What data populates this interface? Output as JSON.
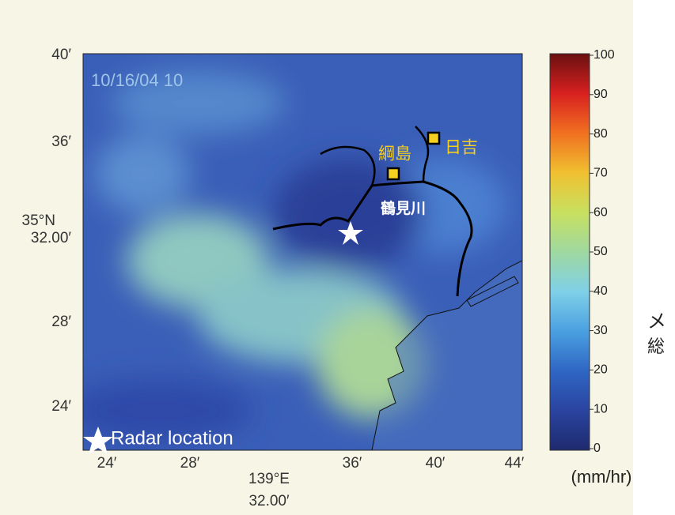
{
  "map": {
    "timestamp": "10/16/04 10",
    "places": {
      "tsunashima": "綱島",
      "hiyoshi": "日吉",
      "river": "鶴見川"
    },
    "radar_label": "Radar location",
    "y_labels": [
      "40′",
      "36′",
      [
        "35°N",
        "32.00′"
      ],
      "28′",
      "24′"
    ],
    "x_labels": [
      "24′",
      "28′",
      [
        "139°E",
        "32.00′"
      ],
      "36′",
      "40′",
      "44′"
    ],
    "colorbar": {
      "ticks": [
        0,
        10,
        20,
        30,
        40,
        50,
        60,
        70,
        80,
        90,
        100
      ],
      "unit": "(mm/hr)"
    },
    "side_text": [
      "メ",
      "総"
    ]
  }
}
